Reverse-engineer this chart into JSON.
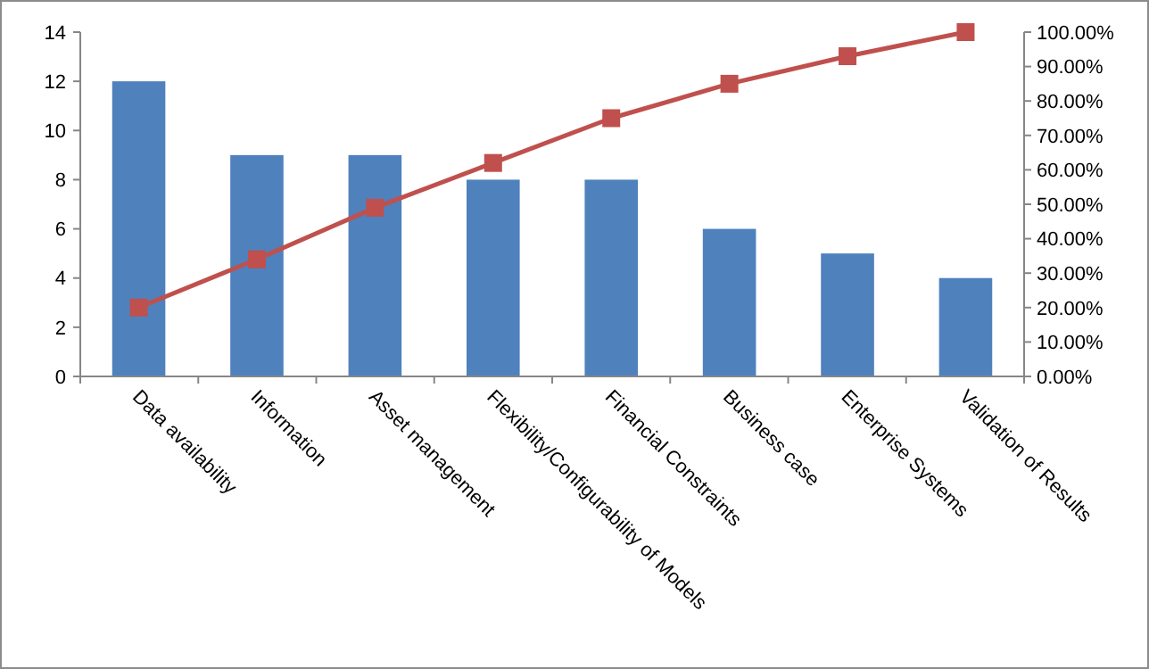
{
  "chart_data": {
    "type": "bar",
    "categories": [
      "Data availability",
      "Information",
      "Asset management",
      "Flexibility/Configurability of Models",
      "Financial Constraints",
      "Business case",
      "Enterprise Systems",
      "Validation of Results"
    ],
    "series": [
      {
        "color": "#4f81bd",
        "values": [
          12,
          9,
          9,
          8,
          8,
          6,
          5,
          4
        ]
      },
      {
        "type": "line",
        "axis": "y2",
        "color": "#c0504d",
        "marker": "square",
        "values": [
          20,
          34,
          49,
          62,
          75,
          85,
          93,
          100
        ]
      }
    ],
    "ylim": [
      0,
      14
    ],
    "yticks": [
      0,
      2,
      4,
      6,
      8,
      10,
      12,
      14
    ],
    "y2lim": [
      0,
      100
    ],
    "y2ticks": [
      {
        "value": 0,
        "label": "0.00%"
      },
      {
        "value": 10,
        "label": "10.00%"
      },
      {
        "value": 20,
        "label": "20.00%"
      },
      {
        "value": 30,
        "label": "30.00%"
      },
      {
        "value": 40,
        "label": "40.00%"
      },
      {
        "value": 50,
        "label": "50.00%"
      },
      {
        "value": 60,
        "label": "60.00%"
      },
      {
        "value": 70,
        "label": "70.00%"
      },
      {
        "value": 80,
        "label": "80.00%"
      },
      {
        "value": 90,
        "label": "90.00%"
      },
      {
        "value": 100,
        "label": "100.00%"
      }
    ],
    "grid": false
  }
}
